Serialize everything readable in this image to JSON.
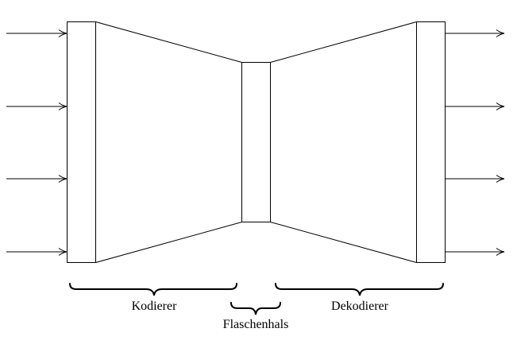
{
  "diagram": {
    "labels": {
      "encoder": "Kodierer",
      "bottleneck": "Flaschenhals",
      "decoder": "Dekodierer"
    },
    "input_arrow_count": 4,
    "output_arrow_count": 4,
    "colors": {
      "stroke": "#000000",
      "background": "#ffffff"
    }
  }
}
